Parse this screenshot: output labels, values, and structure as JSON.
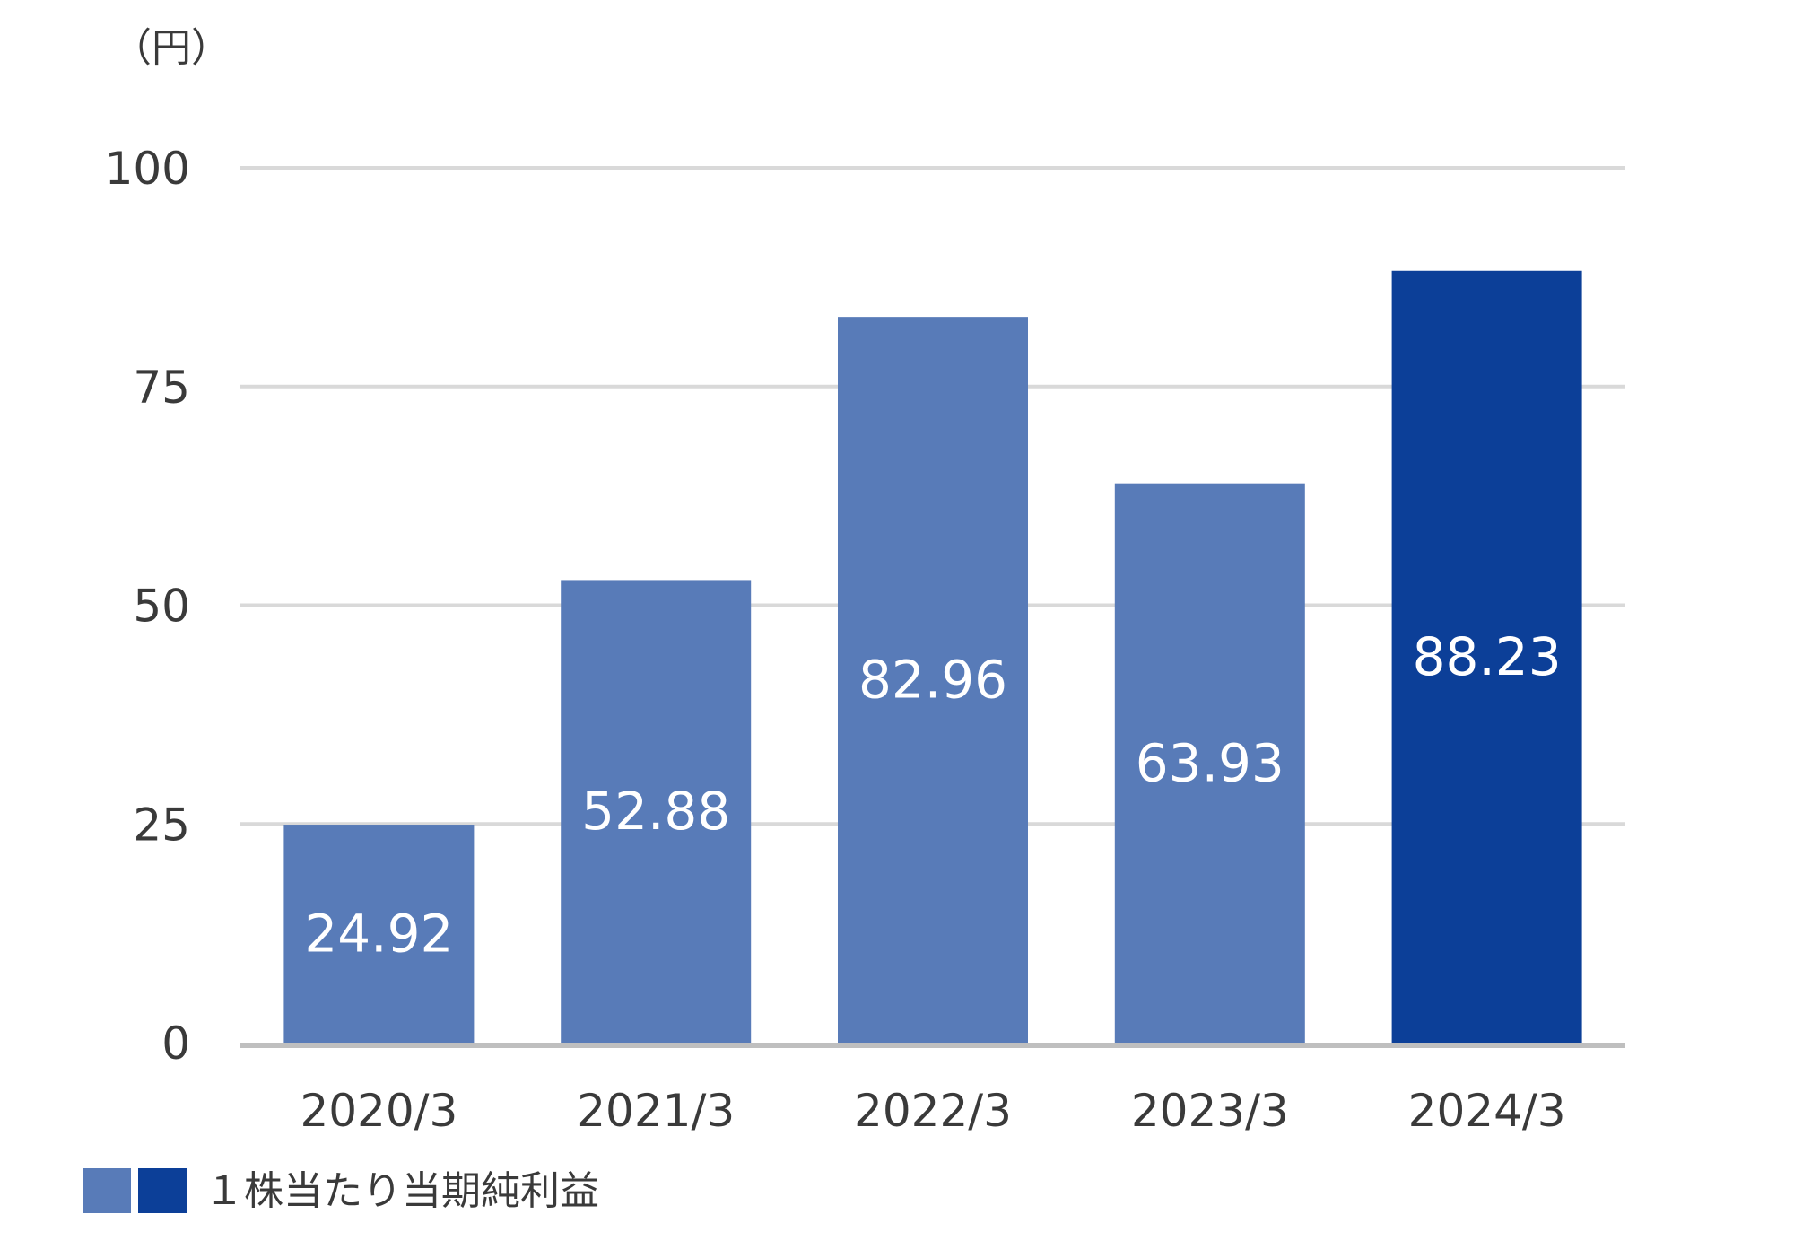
{
  "chart_data": {
    "type": "bar",
    "unit_label": "（円）",
    "categories": [
      "2020/3",
      "2021/3",
      "2022/3",
      "2023/3",
      "2024/3"
    ],
    "series": [
      {
        "name": "１株当たり当期純利益",
        "values": [
          24.92,
          52.88,
          82.96,
          63.93,
          88.23
        ],
        "value_labels": [
          "24.92",
          "52.88",
          "82.96",
          "63.93",
          "88.23"
        ]
      }
    ],
    "bar_colors": [
      "#587bb8",
      "#587bb8",
      "#587bb8",
      "#587bb8",
      "#0c3f98"
    ],
    "yticks": [
      0,
      25,
      50,
      75,
      100
    ],
    "ylim": [
      0,
      100
    ],
    "grid": true,
    "legend": {
      "placement": "bottom-left",
      "swatch_colors": [
        "#587bb8",
        "#0c3f98"
      ],
      "label": "１株当たり当期純利益"
    },
    "colors": {
      "grid": "#d9d9d9",
      "axis": "#bfbfbf"
    }
  }
}
